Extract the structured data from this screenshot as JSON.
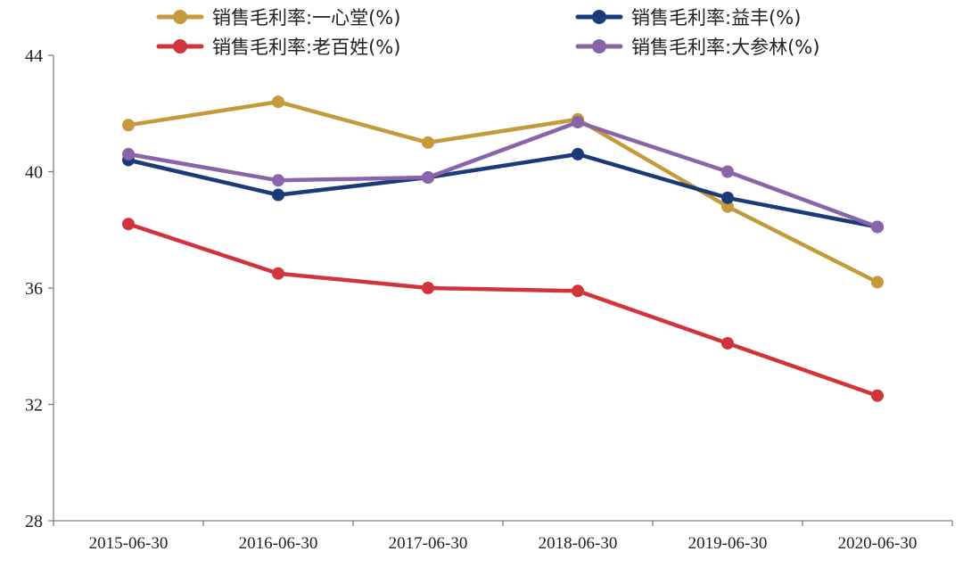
{
  "chart_data": {
    "type": "line",
    "title": "",
    "xlabel": "",
    "ylabel": "",
    "categories": [
      "2015-06-30",
      "2016-06-30",
      "2017-06-30",
      "2018-06-30",
      "2019-06-30",
      "2020-06-30"
    ],
    "ylim": [
      28,
      44
    ],
    "yticks": [
      28,
      32,
      36,
      40,
      44
    ],
    "legend_position": "top",
    "series": [
      {
        "name": "销售毛利率:一心堂(%)",
        "color": "#C49A3C",
        "values": [
          41.6,
          42.4,
          41.0,
          41.8,
          38.8,
          36.2
        ]
      },
      {
        "name": "销售毛利率:益丰(%)",
        "color": "#1B3A7A",
        "values": [
          40.4,
          39.2,
          39.8,
          40.6,
          39.1,
          38.1
        ]
      },
      {
        "name": "销售毛利率:老百姓(%)",
        "color": "#D1343A",
        "values": [
          38.2,
          36.5,
          36.0,
          35.9,
          34.1,
          32.3
        ]
      },
      {
        "name": "销售毛利率:大参林(%)",
        "color": "#8A64A8",
        "values": [
          40.6,
          39.7,
          39.8,
          41.7,
          40.0,
          38.1
        ]
      }
    ]
  }
}
